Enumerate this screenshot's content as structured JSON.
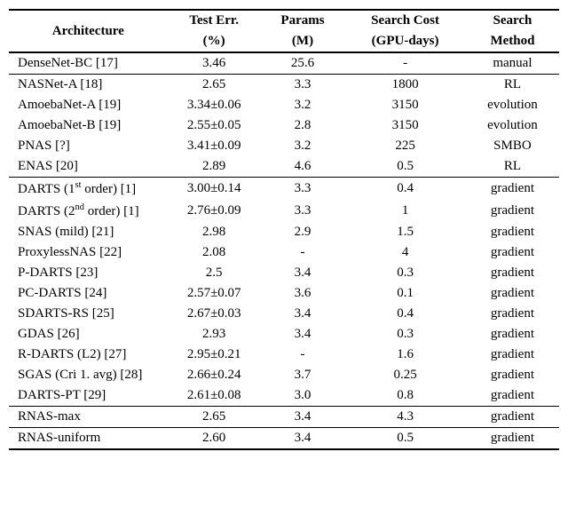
{
  "header": {
    "arch": "Architecture",
    "test_err_top": "Test Err.",
    "test_err_bot": "(%)",
    "params_top": "Params",
    "params_bot": "(M)",
    "cost_top": "Search Cost",
    "cost_bot": "(GPU-days)",
    "method_top": "Search",
    "method_bot": "Method"
  },
  "groups": [
    {
      "rows": [
        {
          "arch_html": "DenseNet-BC [17]",
          "err": "3.46",
          "params": "25.6",
          "cost": "-",
          "method": "manual"
        }
      ]
    },
    {
      "rows": [
        {
          "arch_html": "NASNet-A [18]",
          "err": "2.65",
          "params": "3.3",
          "cost": "1800",
          "method": "RL"
        },
        {
          "arch_html": "AmoebaNet-A [19]",
          "err": "3.34±0.06",
          "params": "3.2",
          "cost": "3150",
          "method": "evolution"
        },
        {
          "arch_html": "AmoebaNet-B [19]",
          "err": "2.55±0.05",
          "params": "2.8",
          "cost": "3150",
          "method": "evolution"
        },
        {
          "arch_html": "PNAS [?]",
          "err": "3.41±0.09",
          "params": "3.2",
          "cost": "225",
          "method": "SMBO"
        },
        {
          "arch_html": "ENAS [20]",
          "err": "2.89",
          "params": "4.6",
          "cost": "0.5",
          "method": "RL"
        }
      ]
    },
    {
      "rows": [
        {
          "arch_html": "DARTS (1<sup>st</sup> order) [1]",
          "err": "3.00±0.14",
          "params": "3.3",
          "cost": "0.4",
          "method": "gradient"
        },
        {
          "arch_html": "DARTS (2<sup>nd</sup> order) [1]",
          "err": "2.76±0.09",
          "params": "3.3",
          "cost": "1",
          "method": "gradient"
        },
        {
          "arch_html": "SNAS (mild) [21]",
          "err": "2.98",
          "params": "2.9",
          "cost": "1.5",
          "method": "gradient"
        },
        {
          "arch_html": "ProxylessNAS [22]",
          "err": "2.08",
          "params": "-",
          "cost": "4",
          "method": "gradient"
        },
        {
          "arch_html": "P-DARTS [23]",
          "err": "2.5",
          "params": "3.4",
          "cost": "0.3",
          "method": "gradient"
        },
        {
          "arch_html": "PC-DARTS [24]",
          "err": "2.57±0.07",
          "params": "3.6",
          "cost": "0.1",
          "method": "gradient"
        },
        {
          "arch_html": "SDARTS-RS [25]",
          "err": "2.67±0.03",
          "params": "3.4",
          "cost": "0.4",
          "method": "gradient"
        },
        {
          "arch_html": "GDAS [26]",
          "err": "2.93",
          "params": "3.4",
          "cost": "0.3",
          "method": "gradient"
        },
        {
          "arch_html": "R-DARTS (L2) [27]",
          "err": "2.95±0.21",
          "params": "-",
          "cost": "1.6",
          "method": "gradient"
        },
        {
          "arch_html": "SGAS (Cri 1. avg) [28]",
          "err": "2.66±0.24",
          "params": "3.7",
          "cost": "0.25",
          "method": "gradient"
        },
        {
          "arch_html": "DARTS-PT [29]",
          "err": "2.61±0.08",
          "params": "3.0",
          "cost": "0.8",
          "method": "gradient"
        }
      ]
    },
    {
      "rows": [
        {
          "arch_html": "RNAS-max",
          "err": "2.65",
          "params": "3.4",
          "cost": "4.3",
          "method": "gradient"
        }
      ]
    },
    {
      "rows": [
        {
          "arch_html": "RNAS-uniform",
          "err": "2.60",
          "params": "3.4",
          "cost": "0.5",
          "method": "gradient"
        }
      ]
    }
  ],
  "column_widths": [
    "170px",
    "100px",
    "90px",
    "130px",
    "100px"
  ]
}
